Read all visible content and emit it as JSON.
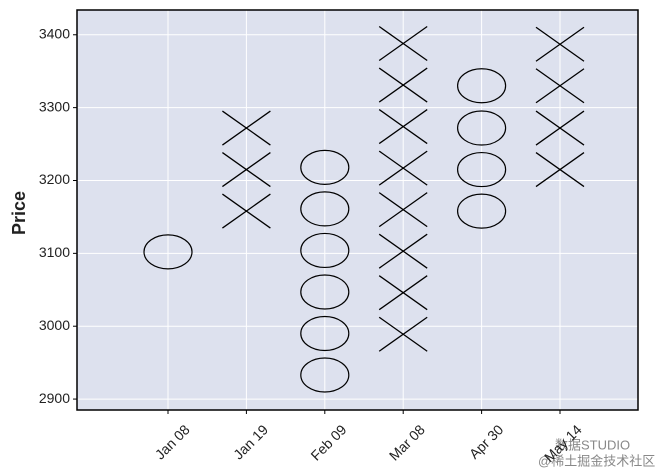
{
  "chart_data": {
    "type": "point-and-figure",
    "y_label": "Price",
    "categories": [
      "Jan 08",
      "Jan 19",
      "Feb 09",
      "Mar 08",
      "Apr 30",
      "May 14"
    ],
    "columns": [
      {
        "box": "O",
        "values": [
          3102
        ]
      },
      {
        "box": "X",
        "values": [
          3158,
          3215,
          3272
        ]
      },
      {
        "box": "O",
        "values": [
          2933,
          2990,
          3047,
          3104,
          3161,
          3218
        ]
      },
      {
        "box": "X",
        "values": [
          2989,
          3046,
          3103,
          3160,
          3217,
          3274,
          3331,
          3388
        ]
      },
      {
        "box": "O",
        "values": [
          3158,
          3215,
          3272,
          3330
        ]
      },
      {
        "box": "X",
        "values": [
          3215,
          3272,
          3330,
          3387
        ]
      }
    ],
    "ylim": [
      2885,
      3434
    ],
    "yticks": [
      2900,
      3000,
      3100,
      3200,
      3300,
      3400
    ],
    "grid": true,
    "background": "#dde1ee",
    "box_color": "#000000",
    "annotations": [
      "数据STUDIO",
      "@稀土掘金技术社区"
    ]
  }
}
